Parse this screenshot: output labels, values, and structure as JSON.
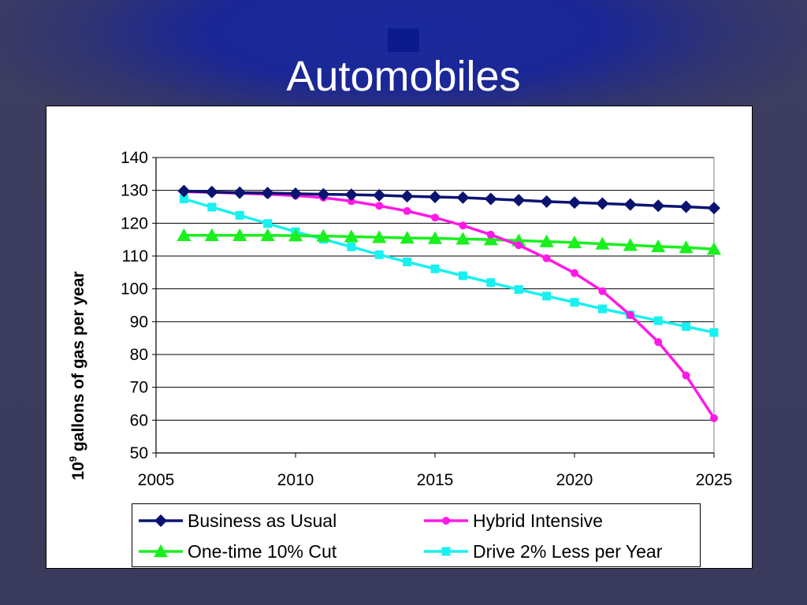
{
  "slide": {
    "title": "Automobiles"
  },
  "colors": {
    "background": "#3a3a5c",
    "title_glow": "#1b2796",
    "business_as_usual": "#0a1470",
    "hybrid_intensive": "#ff19e6",
    "one_time_cut": "#19f01e",
    "drive_less": "#19f0f0"
  },
  "chart_data": {
    "type": "line",
    "title": "",
    "xlabel": "",
    "ylabel_base": "10",
    "ylabel_superscript": "9",
    "ylabel_rest": " gallons of gas per year",
    "xlim": [
      2005,
      2025
    ],
    "ylim": [
      50,
      140
    ],
    "x_ticks": [
      2005,
      2010,
      2015,
      2020,
      2025
    ],
    "y_ticks": [
      50,
      60,
      70,
      80,
      90,
      100,
      110,
      120,
      130,
      140
    ],
    "grid": "horizontal",
    "legend_position": "bottom",
    "x": [
      2006,
      2007,
      2008,
      2009,
      2010,
      2011,
      2012,
      2013,
      2014,
      2015,
      2016,
      2017,
      2018,
      2019,
      2020,
      2021,
      2022,
      2023,
      2024,
      2025
    ],
    "series": [
      {
        "name": "Business as Usual",
        "marker": "diamond",
        "color": "#0a1470",
        "values": [
          129.8,
          129.5,
          129.3,
          129.2,
          129.0,
          128.8,
          128.7,
          128.5,
          128.2,
          128.0,
          127.8,
          127.4,
          127.0,
          126.6,
          126.3,
          126.0,
          125.7,
          125.3,
          125.0,
          124.6
        ]
      },
      {
        "name": "Hybrid Intensive",
        "marker": "circle",
        "color": "#ff19e6",
        "values": [
          129.6,
          129.4,
          129.1,
          128.8,
          128.4,
          127.8,
          126.7,
          125.3,
          123.7,
          121.7,
          119.3,
          116.5,
          113.3,
          109.3,
          104.8,
          99.3,
          92.0,
          83.8,
          73.6,
          60.6
        ]
      },
      {
        "name": "One-time 10% Cut",
        "marker": "triangle",
        "color": "#19f01e",
        "values": [
          116.3,
          116.3,
          116.3,
          116.3,
          116.2,
          116.1,
          115.9,
          115.7,
          115.5,
          115.4,
          115.2,
          115.0,
          114.7,
          114.4,
          114.1,
          113.7,
          113.3,
          112.9,
          112.6,
          112.1
        ]
      },
      {
        "name": "Drive 2% Less per Year",
        "marker": "square",
        "color": "#19f0f0",
        "values": [
          127.4,
          124.9,
          122.4,
          119.9,
          117.4,
          115.1,
          112.8,
          110.4,
          108.2,
          106.1,
          104.0,
          101.9,
          99.8,
          97.8,
          95.9,
          93.9,
          92.1,
          90.3,
          88.5,
          86.7
        ]
      }
    ]
  }
}
